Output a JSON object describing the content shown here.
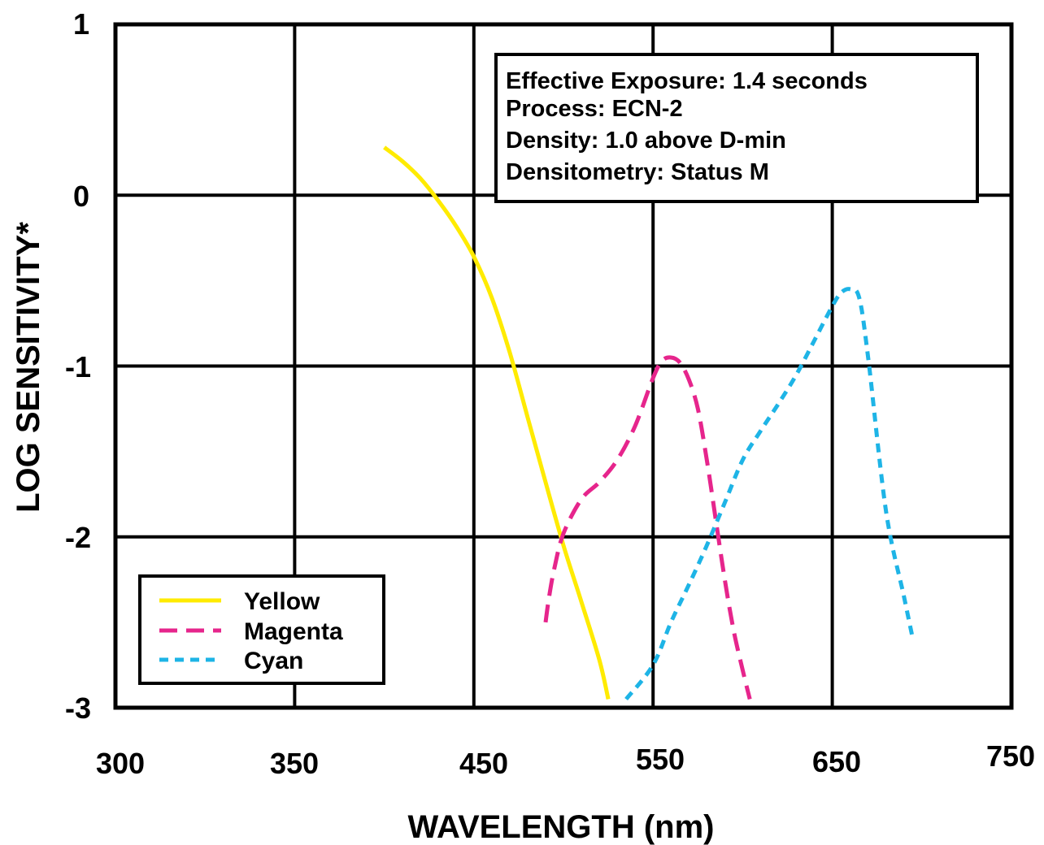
{
  "chart_data": {
    "type": "line",
    "xlabel": "WAVELENGTH (nm)",
    "ylabel": "LOG SENSITIVITY*",
    "x_tick_labels": [
      "300",
      "350",
      "450",
      "550",
      "650",
      "750"
    ],
    "y_tick_labels": [
      "1",
      "0",
      "-1",
      "-2",
      "-3"
    ],
    "xlim": [
      250,
      750
    ],
    "ylim": [
      -3,
      1
    ],
    "x_grid": [
      350,
      450,
      550,
      650
    ],
    "y_grid": [
      0,
      -1,
      -2
    ],
    "grid": true,
    "legend_position": "bottom-left",
    "info_box": {
      "position": "top-right",
      "lines": [
        "Effective Exposure: 1.4 seconds",
        "Process: ECN-2",
        "Density: 1.0 above D-min",
        "Densitometry: Status M"
      ]
    },
    "series": [
      {
        "name": "Yellow",
        "color": "#FFEB00",
        "style": "solid",
        "x": [
          400,
          410,
          420,
          430,
          440,
          450,
          460,
          470,
          480,
          490,
          500,
          510,
          520,
          525
        ],
        "y": [
          0.28,
          0.2,
          0.1,
          -0.03,
          -0.18,
          -0.36,
          -0.6,
          -0.92,
          -1.3,
          -1.68,
          -2.05,
          -2.38,
          -2.72,
          -2.95
        ]
      },
      {
        "name": "Magenta",
        "color": "#E6258C",
        "style": "dashed",
        "x": [
          490,
          492,
          495,
          500,
          510,
          520,
          530,
          540,
          550,
          555,
          560,
          565,
          570,
          575,
          580,
          585,
          590,
          595,
          600,
          604
        ],
        "y": [
          -2.5,
          -2.35,
          -2.18,
          -1.98,
          -1.78,
          -1.68,
          -1.55,
          -1.35,
          -1.07,
          -0.97,
          -0.95,
          -0.98,
          -1.08,
          -1.25,
          -1.55,
          -1.9,
          -2.25,
          -2.55,
          -2.78,
          -2.95
        ]
      },
      {
        "name": "Cyan",
        "color": "#1EB4E6",
        "style": "dotted",
        "x": [
          535,
          550,
          560,
          570,
          580,
          590,
          600,
          610,
          620,
          630,
          640,
          650,
          655,
          660,
          665,
          670,
          680,
          690,
          695
        ],
        "y": [
          -2.95,
          -2.75,
          -2.5,
          -2.28,
          -2.05,
          -1.8,
          -1.55,
          -1.38,
          -1.22,
          -1.05,
          -0.85,
          -0.65,
          -0.57,
          -0.55,
          -0.6,
          -0.95,
          -1.85,
          -2.35,
          -2.6
        ]
      }
    ]
  }
}
